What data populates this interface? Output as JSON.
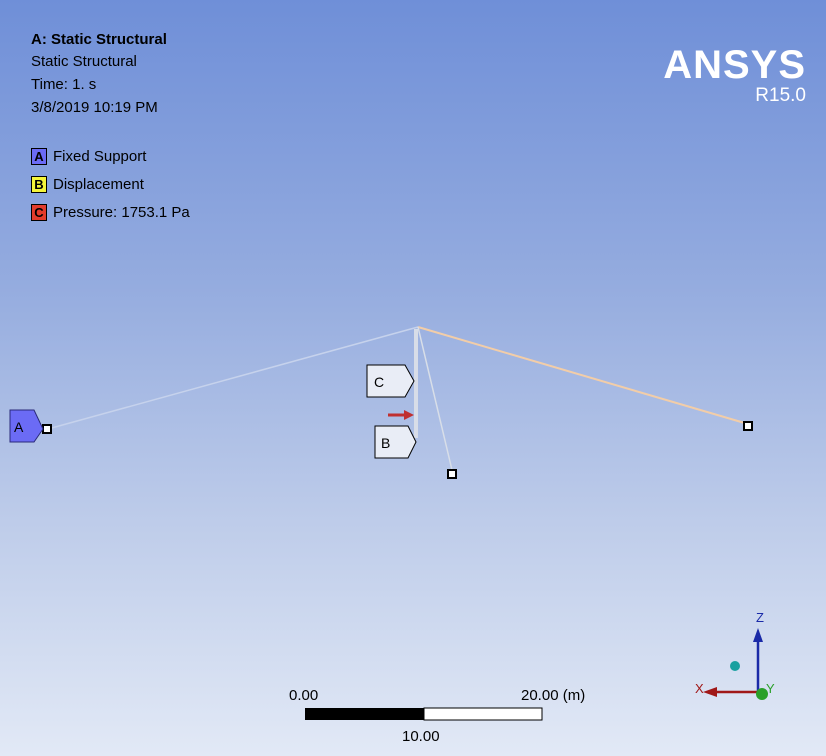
{
  "header": {
    "title": "A: Static Structural",
    "analysis_type": "Static Structural",
    "time": "Time: 1. s",
    "timestamp": "3/8/2019 10:19 PM"
  },
  "legend": [
    {
      "letter": "A",
      "label": "Fixed Support",
      "color": "#6b6bf5"
    },
    {
      "letter": "B",
      "label": "Displacement",
      "color": "#f5f53a"
    },
    {
      "letter": "C",
      "label": "Pressure: 1753.1 Pa",
      "color": "#e23c2c"
    }
  ],
  "brand": {
    "name": "ANSYS",
    "version": "R15.0"
  },
  "callouts": {
    "a": "A",
    "b": "B",
    "c": "C"
  },
  "scale_bar": {
    "start": "0.00",
    "mid": "10.00",
    "end": "20.00 (m)"
  },
  "triad": {
    "x": "X",
    "y": "Y",
    "z": "Z",
    "colors": {
      "x": "#a01818",
      "y": "#2aa02a",
      "z": "#1a2aa8",
      "iso": "#1aa0a0"
    }
  }
}
